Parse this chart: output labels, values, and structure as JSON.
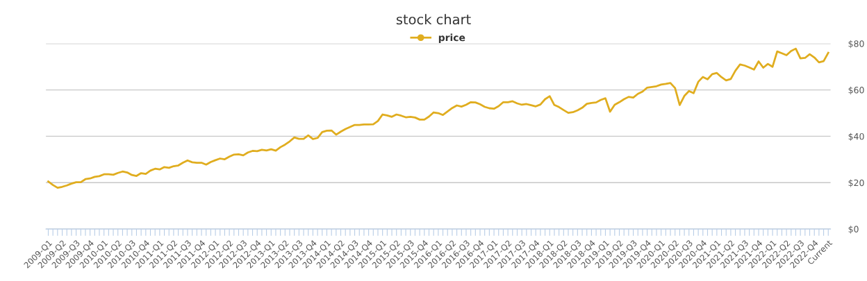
{
  "chart_data": {
    "type": "line",
    "title": "stock chart",
    "categories": [
      "2009-Q1",
      null,
      null,
      "2009-Q2",
      null,
      null,
      "2009-Q3",
      null,
      null,
      "2009-Q4",
      null,
      null,
      "2010-Q1",
      null,
      null,
      "2010-Q2",
      null,
      null,
      "2010-Q3",
      null,
      null,
      "2010-Q4",
      null,
      null,
      "2011-Q1",
      null,
      null,
      "2011-Q2",
      null,
      null,
      "2011-Q3",
      null,
      null,
      "2011-Q4",
      null,
      null,
      "2012-Q1",
      null,
      null,
      "2012-Q2",
      null,
      null,
      "2012-Q3",
      null,
      null,
      "2012-Q4",
      null,
      null,
      "2013-Q1",
      null,
      null,
      "2013-Q2",
      null,
      null,
      "2013-Q3",
      null,
      null,
      "2013-Q4",
      null,
      null,
      "2014-Q1",
      null,
      null,
      "2014-Q2",
      null,
      null,
      "2014-Q3",
      null,
      null,
      "2014-Q4",
      null,
      null,
      "2015-Q1",
      null,
      null,
      "2015-Q2",
      null,
      null,
      "2015-Q3",
      null,
      null,
      "2015-Q4",
      null,
      null,
      "2016-Q1",
      null,
      null,
      "2016-Q2",
      null,
      null,
      "2016-Q3",
      null,
      null,
      "2016-Q4",
      null,
      null,
      "2017-Q1",
      null,
      null,
      "2017-Q2",
      null,
      null,
      "2017-Q3",
      null,
      null,
      "2017-Q4",
      null,
      null,
      "2018-Q1",
      null,
      null,
      "2018-Q2",
      null,
      null,
      "2018-Q3",
      null,
      null,
      "2018-Q4",
      null,
      null,
      "2019-Q1",
      null,
      null,
      "2019-Q2",
      null,
      null,
      "2019-Q3",
      null,
      null,
      "2019-Q4",
      null,
      null,
      "2020-Q1",
      null,
      null,
      "2020-Q2",
      null,
      null,
      "2020-Q3",
      null,
      null,
      "2020-Q4",
      null,
      null,
      "2021-Q1",
      null,
      null,
      "2021-Q2",
      null,
      null,
      "2021-Q3",
      null,
      null,
      "2021-Q4",
      null,
      null,
      "2022-Q1",
      null,
      null,
      "2022-Q2",
      null,
      null,
      "2022-Q3",
      null,
      null,
      "2022-Q4",
      null,
      null,
      "Current"
    ],
    "series": [
      {
        "name": "price",
        "color": "#e0ad1f",
        "values": [
          20.5,
          19.0,
          17.8,
          18.2,
          18.8,
          19.6,
          20.2,
          20.2,
          21.5,
          21.8,
          22.5,
          22.8,
          23.6,
          23.6,
          23.4,
          24.2,
          24.8,
          24.4,
          23.3,
          22.9,
          24.1,
          23.8,
          25.2,
          26.0,
          25.7,
          26.7,
          26.4,
          27.1,
          27.4,
          28.6,
          29.6,
          28.8,
          28.6,
          28.6,
          27.8,
          28.9,
          29.7,
          30.4,
          30.1,
          31.2,
          32.1,
          32.2,
          31.8,
          33.0,
          33.7,
          33.6,
          34.2,
          33.9,
          34.4,
          33.8,
          35.3,
          36.4,
          37.8,
          39.5,
          38.9,
          38.9,
          40.4,
          38.8,
          39.3,
          41.8,
          42.4,
          42.5,
          40.7,
          42.0,
          43.1,
          44.0,
          44.9,
          44.9,
          45.1,
          45.1,
          45.2,
          46.6,
          49.4,
          49.0,
          48.4,
          49.4,
          48.9,
          48.2,
          48.4,
          48.1,
          47.2,
          47.2,
          48.5,
          50.3,
          50.0,
          49.2,
          50.7,
          52.2,
          53.3,
          52.8,
          53.6,
          54.7,
          54.6,
          53.8,
          52.7,
          52.1,
          51.9,
          53.0,
          54.7,
          54.7,
          55.1,
          54.2,
          53.6,
          53.9,
          53.4,
          52.9,
          53.7,
          56.0,
          57.3,
          53.5,
          52.6,
          51.3,
          50.1,
          50.4,
          51.2,
          52.3,
          54.0,
          54.4,
          54.6,
          55.7,
          56.4,
          50.6,
          53.6,
          54.7,
          56.0,
          57.0,
          56.7,
          58.3,
          59.3,
          61.0,
          61.3,
          61.6,
          62.3,
          62.6,
          63.0,
          60.8,
          53.5,
          57.4,
          59.5,
          58.6,
          63.5,
          65.6,
          64.6,
          66.8,
          67.3,
          65.5,
          64.1,
          64.7,
          68.3,
          71.0,
          70.5,
          69.7,
          68.8,
          72.3,
          69.6,
          71.2,
          70.0,
          76.6,
          75.8,
          75.0,
          76.8,
          77.8,
          73.6,
          73.8,
          75.4,
          74.0,
          71.9,
          72.4,
          76.0
        ]
      }
    ],
    "ylim": [
      0,
      80
    ],
    "yticks": [
      {
        "value": 0,
        "label": "$0"
      },
      {
        "value": 20,
        "label": "$20"
      },
      {
        "value": 40,
        "label": "$40"
      },
      {
        "value": 60,
        "label": "$60"
      },
      {
        "value": 80,
        "label": "$80"
      }
    ],
    "grid": "y",
    "legend": "top"
  }
}
